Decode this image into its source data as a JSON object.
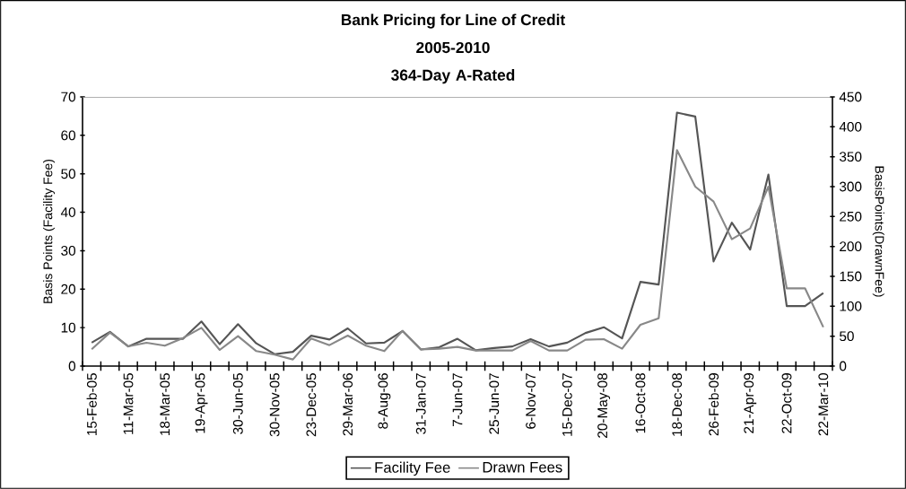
{
  "chart_data": {
    "type": "line",
    "title": "Bank Pricing for Line of Credit",
    "subtitle": "2005-2010 364-Day A-Rated",
    "ylabel": "Basis Points (Facility Fee)",
    "y2label": "BasisPoints(DrawnFee)",
    "categories": [
      "15-Feb-05",
      null,
      "11-Mar-05",
      null,
      "18-Mar-05",
      null,
      "19-Apr-05",
      null,
      "30-Jun-05",
      null,
      "30-Nov-05",
      null,
      "23-Dec-05",
      null,
      "29-Mar-06",
      null,
      "8-Aug-06",
      null,
      "31-Jan-07",
      null,
      "7-Jun-07",
      null,
      "25-Jun-07",
      null,
      "6-Nov-07",
      null,
      "15-Dec-07",
      null,
      "20-May-08",
      null,
      "16-Oct-08",
      null,
      "18-Dec-08",
      null,
      "26-Feb-09",
      null,
      "21-Apr-09",
      null,
      "22-Oct-09",
      null,
      "22-Mar-10"
    ],
    "series": [
      {
        "name": "Facility Fee",
        "color": "#555555",
        "values": [
          6.1,
          8.9,
          5.1,
          7.1,
          7.1,
          7.1,
          11.6,
          5.7,
          10.9,
          5.9,
          3.1,
          3.7,
          7.9,
          6.9,
          9.8,
          5.9,
          6.1,
          9.1,
          4.3,
          4.9,
          7.1,
          4.1,
          4.7,
          5.1,
          7.0,
          5.1,
          6.1,
          8.6,
          10.1,
          7.2,
          21.9,
          21.2,
          65.9,
          64.9,
          27.2,
          37.3,
          30.3,
          49.8,
          15.6,
          15.6,
          19.0
        ]
      },
      {
        "name": "Drawn Fees",
        "color": "#888888",
        "axis": "y2",
        "values": [
          28,
          56,
          33,
          39,
          34,
          47,
          64,
          27,
          50,
          25,
          19,
          11,
          46,
          35,
          51,
          34,
          25,
          59,
          28,
          29,
          32,
          26,
          26,
          26,
          42,
          26,
          26,
          44,
          45,
          29,
          69,
          80,
          361,
          300,
          275,
          212,
          230,
          300,
          130,
          130,
          65
        ]
      }
    ],
    "ylim": [
      0,
      70
    ],
    "yticks": [
      0,
      10,
      20,
      30,
      40,
      50,
      60,
      70
    ],
    "y2lim": [
      0,
      450
    ],
    "y2ticks": [
      0,
      50,
      100,
      150,
      200,
      250,
      300,
      350,
      400,
      450
    ],
    "legend": "bottom",
    "grid": false,
    "marker": "none",
    "line_style": "solid"
  }
}
